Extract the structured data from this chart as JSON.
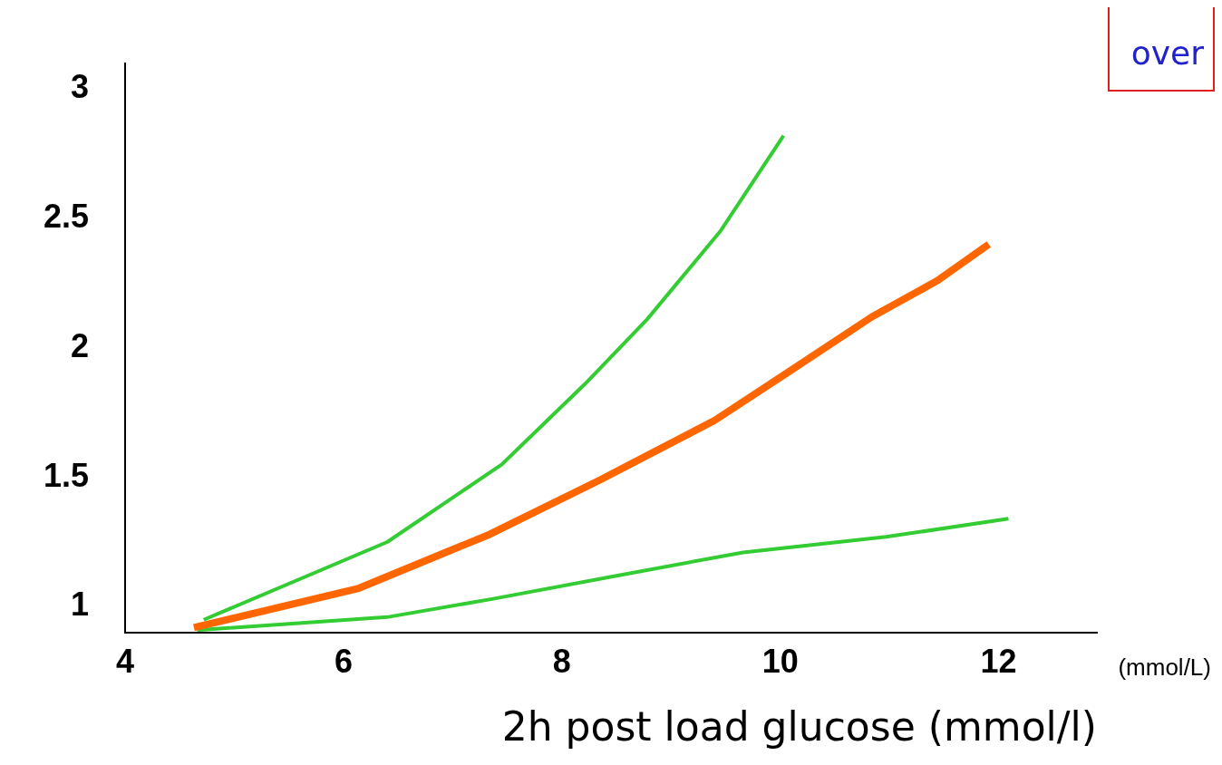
{
  "chart_data": {
    "type": "line",
    "xlabel": "2h post load glucose (mmol/l)",
    "annotations": [
      "over",
      "(mmol/L)"
    ],
    "xlim": [
      4,
      12.9
    ],
    "xticks": [
      4,
      6,
      8,
      10,
      12
    ],
    "ylim": [
      0.9,
      3.1
    ],
    "yticks": [
      1,
      1.5,
      2,
      2.5,
      3
    ],
    "grid": false,
    "legend": false,
    "marker": "none",
    "line_style": "solid",
    "series": [
      {
        "color": "#33cc33",
        "x": [
          4.72,
          6.4,
          7.45,
          8.21,
          8.78,
          9.45,
          10.03
        ],
        "values": [
          0.95,
          1.25,
          1.55,
          1.86,
          2.11,
          2.45,
          2.82
        ]
      },
      {
        "color": "#ff6600",
        "x": [
          4.63,
          6.13,
          7.34,
          8.35,
          9.4,
          10.05,
          10.84,
          11.44,
          11.91
        ],
        "values": [
          0.92,
          1.07,
          1.28,
          1.49,
          1.72,
          1.9,
          2.12,
          2.26,
          2.4
        ]
      },
      {
        "color": "#33cc33",
        "x": [
          4.66,
          6.4,
          7.36,
          8.5,
          9.66,
          10.97,
          12.09
        ],
        "values": [
          0.91,
          0.96,
          1.03,
          1.12,
          1.21,
          1.27,
          1.34
        ]
      }
    ]
  }
}
